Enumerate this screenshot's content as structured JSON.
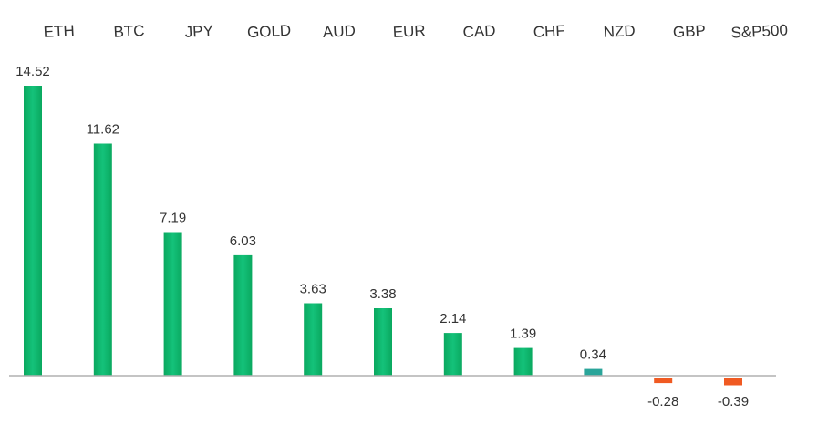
{
  "chart_data": {
    "type": "bar",
    "title": "",
    "xlabel": "",
    "ylabel": "",
    "categories": [
      "ETH",
      "BTC",
      "JPY",
      "GOLD",
      "AUD",
      "EUR",
      "CAD",
      "CHF",
      "NZD",
      "GBP",
      "S&P500"
    ],
    "values": [
      14.52,
      11.62,
      7.19,
      6.03,
      3.63,
      3.38,
      2.14,
      1.39,
      0.34,
      -0.28,
      -0.39
    ],
    "value_labels": [
      "14.52",
      "11.62",
      "7.19",
      "6.03",
      "3.63",
      "3.38",
      "2.14",
      "1.39",
      "0.34",
      "-0.28",
      "-0.39"
    ],
    "ylim": [
      -0.6,
      14.6
    ],
    "grid": false,
    "legend": "none",
    "category_axis_position": "top",
    "colors": {
      "positive": "#0db36a",
      "positive_small": "#2aa59a",
      "negative": "#f05a22",
      "baseline": "#b0b0b0",
      "text": "#333333"
    }
  }
}
